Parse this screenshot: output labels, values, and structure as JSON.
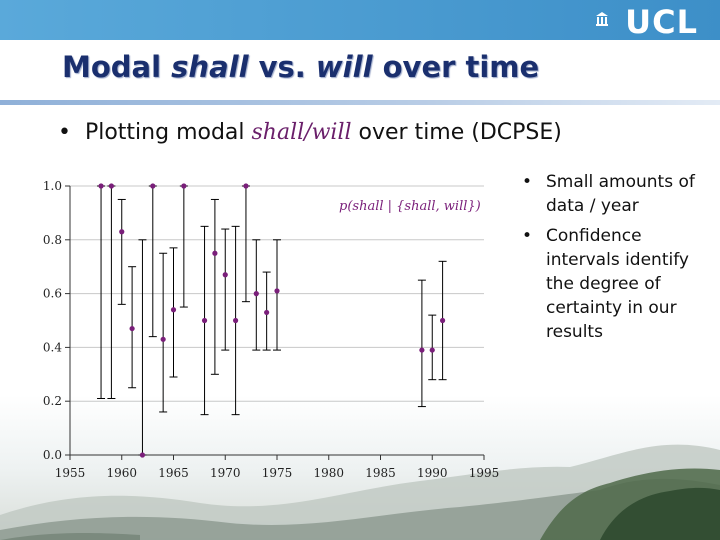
{
  "header": {
    "logo_text": "UCL",
    "title_part1": "Modal ",
    "title_shall": "shall",
    "title_vs": " vs. ",
    "title_will": "will",
    "title_part2": " over time"
  },
  "bullet": {
    "prefix": "Plotting modal ",
    "term": "shall/will",
    "suffix": " over time (DCPSE)"
  },
  "side_bullets": [
    "Small amounts of data / year",
    "Confidence intervals identify the degree of certainty in our results"
  ],
  "colors": {
    "topbar": "#4a9bd3",
    "title": "#1a2f6e",
    "point": "#7a1f7a",
    "grid": "#c8c8c8",
    "whisker": "#000000"
  },
  "chart_data": {
    "type": "scatter",
    "annotation": "p(shall | {shall, will})",
    "xlim": [
      1955,
      1995
    ],
    "ylim": [
      0.0,
      1.0
    ],
    "x_ticks": [
      1955,
      1960,
      1965,
      1970,
      1975,
      1980,
      1985,
      1990,
      1995
    ],
    "y_ticks": [
      0.0,
      0.2,
      0.4,
      0.6,
      0.8,
      1.0
    ],
    "y_tick_labels": [
      "0.0",
      "0.2",
      "0.4",
      "0.6",
      "0.8",
      "1.0"
    ],
    "grid": "horizontal",
    "error_bars": true,
    "series": [
      {
        "points": [
          {
            "x": 1958,
            "y": 1.0,
            "lo": 0.21,
            "hi": 1.0
          },
          {
            "x": 1959,
            "y": 1.0,
            "lo": 0.21,
            "hi": 1.0
          },
          {
            "x": 1960,
            "y": 0.83,
            "lo": 0.56,
            "hi": 0.95
          },
          {
            "x": 1961,
            "y": 0.47,
            "lo": 0.25,
            "hi": 0.7
          },
          {
            "x": 1962,
            "y": 0.0,
            "lo": 0.0,
            "hi": 0.8
          },
          {
            "x": 1963,
            "y": 1.0,
            "lo": 0.44,
            "hi": 1.0
          },
          {
            "x": 1964,
            "y": 0.43,
            "lo": 0.16,
            "hi": 0.75
          },
          {
            "x": 1965,
            "y": 0.54,
            "lo": 0.29,
            "hi": 0.77
          },
          {
            "x": 1966,
            "y": 1.0,
            "lo": 0.55,
            "hi": 1.0
          },
          {
            "x": 1968,
            "y": 0.5,
            "lo": 0.15,
            "hi": 0.85
          },
          {
            "x": 1969,
            "y": 0.75,
            "lo": 0.3,
            "hi": 0.95
          },
          {
            "x": 1970,
            "y": 0.67,
            "lo": 0.39,
            "hi": 0.84
          },
          {
            "x": 1971,
            "y": 0.5,
            "lo": 0.15,
            "hi": 0.85
          },
          {
            "x": 1972,
            "y": 1.0,
            "lo": 0.57,
            "hi": 1.0
          },
          {
            "x": 1973,
            "y": 0.6,
            "lo": 0.39,
            "hi": 0.8
          },
          {
            "x": 1974,
            "y": 0.53,
            "lo": 0.39,
            "hi": 0.68
          },
          {
            "x": 1975,
            "y": 0.61,
            "lo": 0.39,
            "hi": 0.8
          },
          {
            "x": 1989,
            "y": 0.39,
            "lo": 0.18,
            "hi": 0.65
          },
          {
            "x": 1990,
            "y": 0.39,
            "lo": 0.28,
            "hi": 0.52
          },
          {
            "x": 1991,
            "y": 0.5,
            "lo": 0.28,
            "hi": 0.72
          }
        ]
      }
    ]
  }
}
